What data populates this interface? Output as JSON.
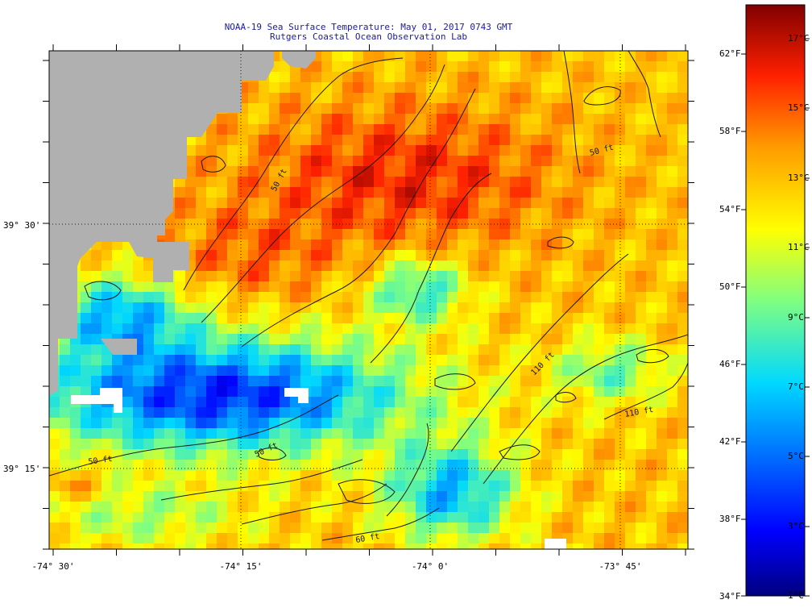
{
  "header": {
    "title": "NOAA-19 Sea Surface Temperature:  May 01, 2017 0743 GMT",
    "subtitle": "Rutgers Coastal Ocean Observation Lab"
  },
  "axes": {
    "x_ticks": [
      "-74° 30'",
      "-74° 15'",
      "-74° 0'",
      "-73° 45'"
    ],
    "y_ticks": [
      "39° 30'",
      "39° 15'"
    ]
  },
  "contours": {
    "labels": [
      "50 ft",
      "50 ft",
      "50 ft",
      "50 ft",
      "110 ft",
      "110 ft",
      "60 ft"
    ]
  },
  "colorbar": {
    "fahrenheit": [
      "62°F",
      "58°F",
      "54°F",
      "50°F",
      "46°F",
      "42°F",
      "38°F",
      "34°F"
    ],
    "celsius": [
      "17°C",
      "15°C",
      "13°C",
      "11°C",
      "9°C",
      "7°C",
      "5°C",
      "3°C",
      "1°C"
    ],
    "range_c": [
      1,
      18
    ],
    "range_f": [
      34,
      64
    ]
  },
  "colors": {
    "land": "#b0b0b0",
    "no_data": "#ffffff",
    "contour": "#1a1a1a",
    "title": "#1a1aa0"
  }
}
